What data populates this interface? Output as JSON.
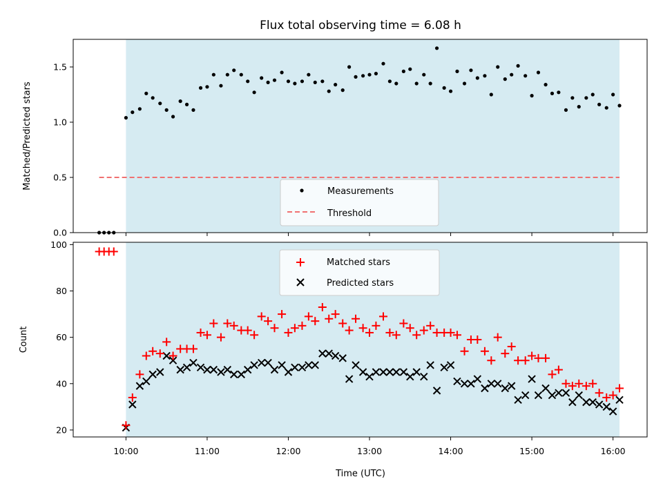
{
  "colors": {
    "observing_band": "#add8e6",
    "measurement": "#000000",
    "threshold": "#f07070",
    "matched": "#ff0000",
    "predicted": "#000000"
  },
  "chart_data": [
    {
      "type": "scatter",
      "title": "Flux total observing time = 6.08 h",
      "xlabel": "",
      "ylabel": "Matched/Predicted stars",
      "xlim": [
        9.35,
        16.42
      ],
      "ylim": [
        0.0,
        1.75
      ],
      "yticks": [
        0.0,
        0.5,
        1.0,
        1.5
      ],
      "ytick_labels": [
        "0.0",
        "0.5",
        "1.0",
        "1.5"
      ],
      "xticks": [
        10,
        11,
        12,
        13,
        14,
        15,
        16
      ],
      "observing_window": [
        10.0,
        16.08
      ],
      "legend": "lower-center",
      "grid": false,
      "threshold": 0.5,
      "threshold_range": [
        9.67,
        16.08
      ],
      "series": [
        {
          "name": "Measurements",
          "marker": "dot",
          "x": [
            9.67,
            9.73,
            9.79,
            9.85,
            10.0,
            10.08,
            10.17,
            10.25,
            10.33,
            10.42,
            10.5,
            10.58,
            10.67,
            10.75,
            10.83,
            10.92,
            11.0,
            11.08,
            11.17,
            11.25,
            11.33,
            11.42,
            11.5,
            11.58,
            11.67,
            11.75,
            11.83,
            11.92,
            12.0,
            12.08,
            12.17,
            12.25,
            12.33,
            12.42,
            12.5,
            12.58,
            12.67,
            12.75,
            12.83,
            12.92,
            13.0,
            13.08,
            13.17,
            13.25,
            13.33,
            13.42,
            13.5,
            13.58,
            13.67,
            13.75,
            13.83,
            13.92,
            14.0,
            14.08,
            14.17,
            14.25,
            14.33,
            14.42,
            14.5,
            14.58,
            14.67,
            14.75,
            14.83,
            14.92,
            15.0,
            15.08,
            15.17,
            15.25,
            15.33,
            15.42,
            15.5,
            15.58,
            15.67,
            15.75,
            15.83,
            15.92,
            16.0,
            16.08
          ],
          "y": [
            0.0,
            0.0,
            0.0,
            0.0,
            1.04,
            1.09,
            1.12,
            1.26,
            1.22,
            1.17,
            1.11,
            1.05,
            1.19,
            1.16,
            1.11,
            1.31,
            1.32,
            1.43,
            1.33,
            1.43,
            1.47,
            1.43,
            1.37,
            1.27,
            1.4,
            1.36,
            1.38,
            1.45,
            1.37,
            1.35,
            1.37,
            1.43,
            1.36,
            1.37,
            1.28,
            1.34,
            1.29,
            1.5,
            1.41,
            1.42,
            1.43,
            1.44,
            1.53,
            1.37,
            1.35,
            1.46,
            1.48,
            1.35,
            1.43,
            1.35,
            1.67,
            1.31,
            1.28,
            1.46,
            1.35,
            1.47,
            1.4,
            1.42,
            1.25,
            1.5,
            1.39,
            1.43,
            1.51,
            1.42,
            1.24,
            1.45,
            1.34,
            1.26,
            1.27,
            1.11,
            1.22,
            1.14,
            1.22,
            1.25,
            1.16,
            1.13,
            1.25,
            1.15
          ]
        }
      ]
    },
    {
      "type": "scatter",
      "title": "",
      "xlabel": "Time (UTC)",
      "ylabel": "Count",
      "xlim": [
        9.35,
        16.42
      ],
      "ylim": [
        17,
        101
      ],
      "yticks": [
        20,
        40,
        60,
        80,
        100
      ],
      "ytick_labels": [
        "20",
        "40",
        "60",
        "80",
        "100"
      ],
      "xticks": [
        10,
        11,
        12,
        13,
        14,
        15,
        16
      ],
      "xtick_labels": [
        "10:00",
        "11:00",
        "12:00",
        "13:00",
        "14:00",
        "15:00",
        "16:00"
      ],
      "observing_window": [
        10.0,
        16.08
      ],
      "legend": "upper-center",
      "grid": false,
      "series": [
        {
          "name": "Matched stars",
          "marker": "plus",
          "x": [
            9.67,
            9.73,
            9.79,
            9.85,
            10.0,
            10.08,
            10.17,
            10.25,
            10.33,
            10.42,
            10.5,
            10.58,
            10.67,
            10.75,
            10.83,
            10.92,
            11.0,
            11.08,
            11.17,
            11.25,
            11.33,
            11.42,
            11.5,
            11.58,
            11.67,
            11.75,
            11.83,
            11.92,
            12.0,
            12.08,
            12.17,
            12.25,
            12.33,
            12.42,
            12.5,
            12.58,
            12.67,
            12.75,
            12.83,
            12.92,
            13.0,
            13.08,
            13.17,
            13.25,
            13.33,
            13.42,
            13.5,
            13.58,
            13.67,
            13.75,
            13.83,
            13.92,
            14.0,
            14.08,
            14.17,
            14.25,
            14.33,
            14.42,
            14.5,
            14.58,
            14.67,
            14.75,
            14.83,
            14.92,
            15.0,
            15.08,
            15.17,
            15.25,
            15.33,
            15.42,
            15.5,
            15.58,
            15.67,
            15.75,
            15.83,
            15.92,
            16.0,
            16.08
          ],
          "y": [
            97,
            97,
            97,
            97,
            22,
            34,
            44,
            52,
            54,
            53,
            58,
            52,
            55,
            55,
            55,
            62,
            61,
            66,
            60,
            66,
            65,
            63,
            63,
            61,
            69,
            67,
            64,
            70,
            62,
            64,
            65,
            69,
            67,
            73,
            68,
            70,
            66,
            63,
            68,
            64,
            62,
            65,
            69,
            62,
            61,
            66,
            64,
            61,
            63,
            65,
            62,
            62,
            62,
            61,
            54,
            59,
            59,
            54,
            50,
            60,
            53,
            56,
            50,
            50,
            52,
            51,
            51,
            44,
            46,
            40,
            39,
            40,
            39,
            40,
            36,
            34,
            35,
            38
          ]
        },
        {
          "name": "Predicted stars",
          "marker": "x",
          "x": [
            10.0,
            10.08,
            10.17,
            10.25,
            10.33,
            10.42,
            10.5,
            10.58,
            10.67,
            10.75,
            10.83,
            10.92,
            11.0,
            11.08,
            11.17,
            11.25,
            11.33,
            11.42,
            11.5,
            11.58,
            11.67,
            11.75,
            11.83,
            11.92,
            12.0,
            12.08,
            12.17,
            12.25,
            12.33,
            12.42,
            12.5,
            12.58,
            12.67,
            12.75,
            12.83,
            12.92,
            13.0,
            13.08,
            13.17,
            13.25,
            13.33,
            13.42,
            13.5,
            13.58,
            13.67,
            13.75,
            13.83,
            13.92,
            14.0,
            14.08,
            14.17,
            14.25,
            14.33,
            14.42,
            14.5,
            14.58,
            14.67,
            14.75,
            14.83,
            14.92,
            15.0,
            15.08,
            15.17,
            15.25,
            15.33,
            15.42,
            15.5,
            15.58,
            15.67,
            15.75,
            15.83,
            15.92,
            16.0,
            16.08
          ],
          "y": [
            21,
            31,
            39,
            41,
            44,
            45,
            52,
            50,
            46,
            47,
            49,
            47,
            46,
            46,
            45,
            46,
            44,
            44,
            46,
            48,
            49,
            49,
            46,
            48,
            45,
            47,
            47,
            48,
            48,
            53,
            53,
            52,
            51,
            42,
            48,
            45,
            43,
            45,
            45,
            45,
            45,
            45,
            43,
            45,
            43,
            48,
            37,
            47,
            48,
            41,
            40,
            40,
            42,
            38,
            40,
            40,
            38,
            39,
            33,
            35,
            42,
            35,
            38,
            35,
            36,
            36,
            32,
            35,
            32,
            32,
            31,
            30,
            28,
            33
          ]
        }
      ]
    }
  ]
}
